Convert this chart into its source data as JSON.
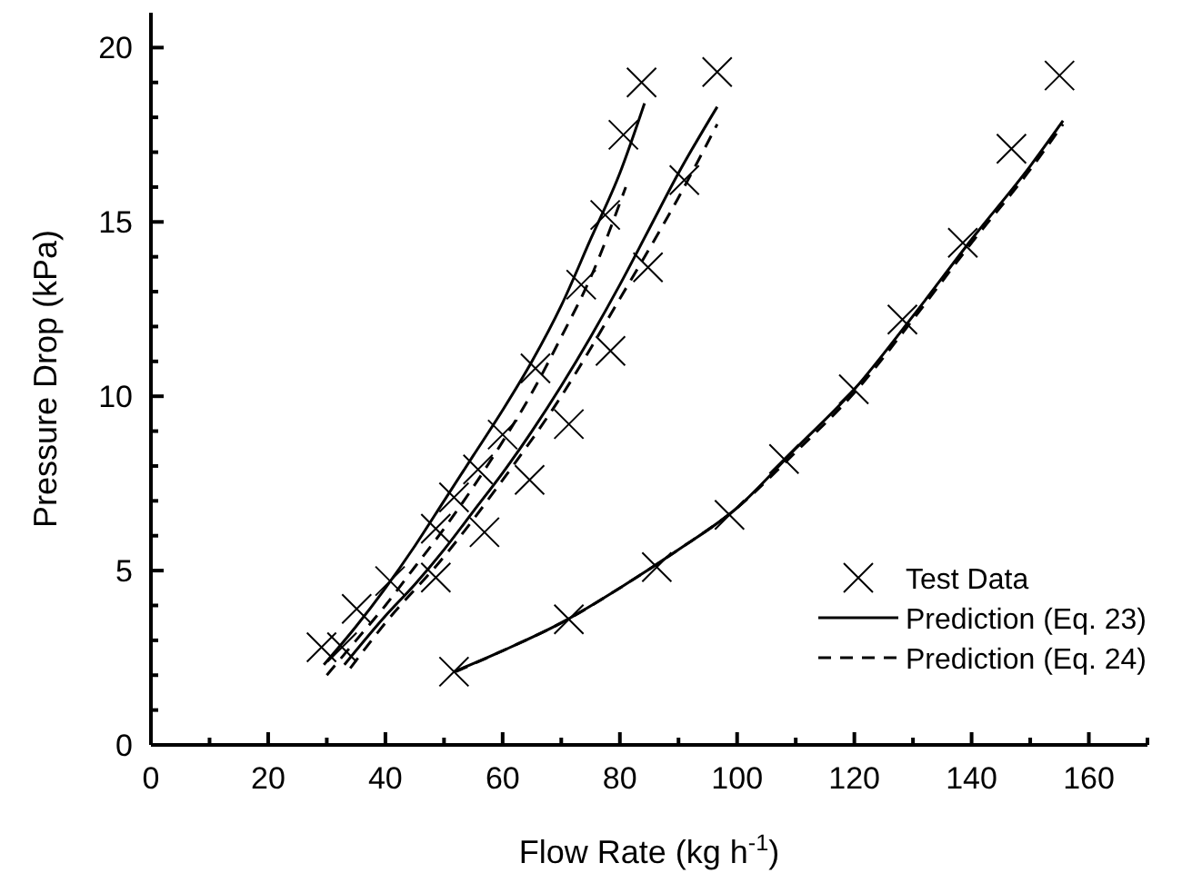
{
  "chart_data": {
    "type": "line",
    "xlabel": "Flow Rate (kg h$^{-1}$)",
    "ylabel": "Pressure Drop (kPa)",
    "xlim": [
      0,
      170
    ],
    "ylim": [
      0,
      21
    ],
    "xticks": [
      0,
      {
        "value": 10,
        "label": null
      },
      20,
      {
        "value": 30,
        "label": null
      },
      40,
      {
        "value": 50,
        "label": null
      },
      60,
      {
        "value": 70,
        "label": null
      },
      80,
      {
        "value": 90,
        "label": null
      },
      100,
      {
        "value": 110,
        "label": null
      },
      120,
      {
        "value": 130,
        "label": null
      },
      140,
      {
        "value": 150,
        "label": null
      },
      160,
      {
        "value": 170,
        "label": null
      }
    ],
    "yticks": [
      0,
      {
        "value": 1,
        "label": null
      },
      {
        "value": 2,
        "label": null
      },
      {
        "value": 3,
        "label": null
      },
      {
        "value": 4,
        "label": null
      },
      5,
      {
        "value": 6,
        "label": null
      },
      {
        "value": 7,
        "label": null
      },
      {
        "value": 8,
        "label": null
      },
      {
        "value": 9,
        "label": null
      },
      10,
      {
        "value": 11,
        "label": null
      },
      {
        "value": 12,
        "label": null
      },
      {
        "value": 13,
        "label": null
      },
      {
        "value": 14,
        "label": null
      },
      15,
      {
        "value": 16,
        "label": null
      },
      {
        "value": 17,
        "label": null
      },
      {
        "value": 18,
        "label": null
      },
      {
        "value": 19,
        "label": null
      },
      20
    ],
    "grid": false,
    "legend": "bottom right",
    "series": [
      {
        "name": "Test Data",
        "type": "scatter",
        "marker": "cross",
        "color": "#000000",
        "x": [
          29.1,
          32.6,
          35.1,
          40.8,
          48.6,
          48.6,
          51.7,
          56.9,
          55.8,
          60.0,
          64.6,
          65.6,
          71.3,
          73.4,
          77.5,
          78.4,
          80.6,
          83.7,
          84.8,
          91,
          96.6,
          51.7,
          71.3,
          86.3,
          98.7,
          108,
          119.9,
          128.2,
          138.5,
          146.8,
          155
        ],
        "values": [
          2.8,
          2.8,
          3.9,
          4.7,
          4.8,
          6.2,
          7.1,
          6.1,
          7.9,
          8.9,
          7.6,
          10.8,
          9.2,
          13.2,
          15.2,
          11.3,
          17.5,
          19.0,
          13.7,
          16.2,
          19.3,
          2.1,
          3.6,
          5.1,
          6.6,
          8.2,
          10.2,
          12.2,
          14.4,
          17.1,
          19.2
        ]
      },
      {
        "name": "Prediction (Eq. 23)",
        "marker": "none",
        "line_style": "solid",
        "color": "#000000",
        "x": [
          29.5,
          35,
          40,
          45,
          50,
          55,
          60,
          65,
          70,
          75,
          80,
          84.2
        ],
        "values": [
          2.3,
          3.4,
          4.5,
          5.7,
          7.0,
          8.3,
          9.6,
          11.0,
          12.6,
          14.5,
          16.4,
          18.4
        ]
      },
      {
        "marker": "none",
        "line_style": "solid",
        "color": "#000000",
        "x": [
          33,
          40,
          45,
          50,
          55,
          60,
          65,
          70,
          75,
          80,
          85,
          90,
          96.6
        ],
        "values": [
          2.3,
          3.7,
          4.6,
          5.6,
          6.7,
          7.8,
          9.0,
          10.3,
          11.7,
          13.2,
          14.8,
          16.4,
          18.3
        ]
      },
      {
        "marker": "none",
        "line_style": "solid",
        "color": "#000000",
        "x": [
          51.7,
          60,
          70,
          80,
          90,
          100,
          110,
          120,
          130,
          140,
          150,
          155.6
        ],
        "values": [
          2.1,
          2.7,
          3.5,
          4.5,
          5.6,
          6.8,
          8.5,
          10.2,
          12.3,
          14.5,
          16.6,
          17.9
        ]
      },
      {
        "name": "Prediction (Eq. 24)",
        "marker": "none",
        "line_style": "dashed",
        "color": "#000000",
        "x": [
          30,
          35,
          40,
          45,
          50,
          55,
          60,
          65,
          70,
          75,
          81
        ],
        "values": [
          2.0,
          3.0,
          4.0,
          5.1,
          6.2,
          7.4,
          8.7,
          10.1,
          11.7,
          13.4,
          16.0
        ]
      },
      {
        "marker": "none",
        "line_style": "dashed",
        "color": "#000000",
        "x": [
          34,
          40,
          50,
          60,
          70,
          80,
          90,
          96.6
        ],
        "values": [
          2.2,
          3.5,
          5.4,
          7.6,
          10.0,
          12.8,
          15.7,
          17.8
        ]
      },
      {
        "marker": "none",
        "line_style": "dashed",
        "color": "#000000",
        "x": [
          52,
          60,
          70,
          80,
          90,
          100,
          110,
          120,
          130,
          140,
          150,
          155.6
        ],
        "values": [
          2.1,
          2.7,
          3.5,
          4.5,
          5.6,
          6.8,
          8.4,
          10.1,
          12.2,
          14.4,
          16.5,
          17.8
        ]
      }
    ]
  }
}
